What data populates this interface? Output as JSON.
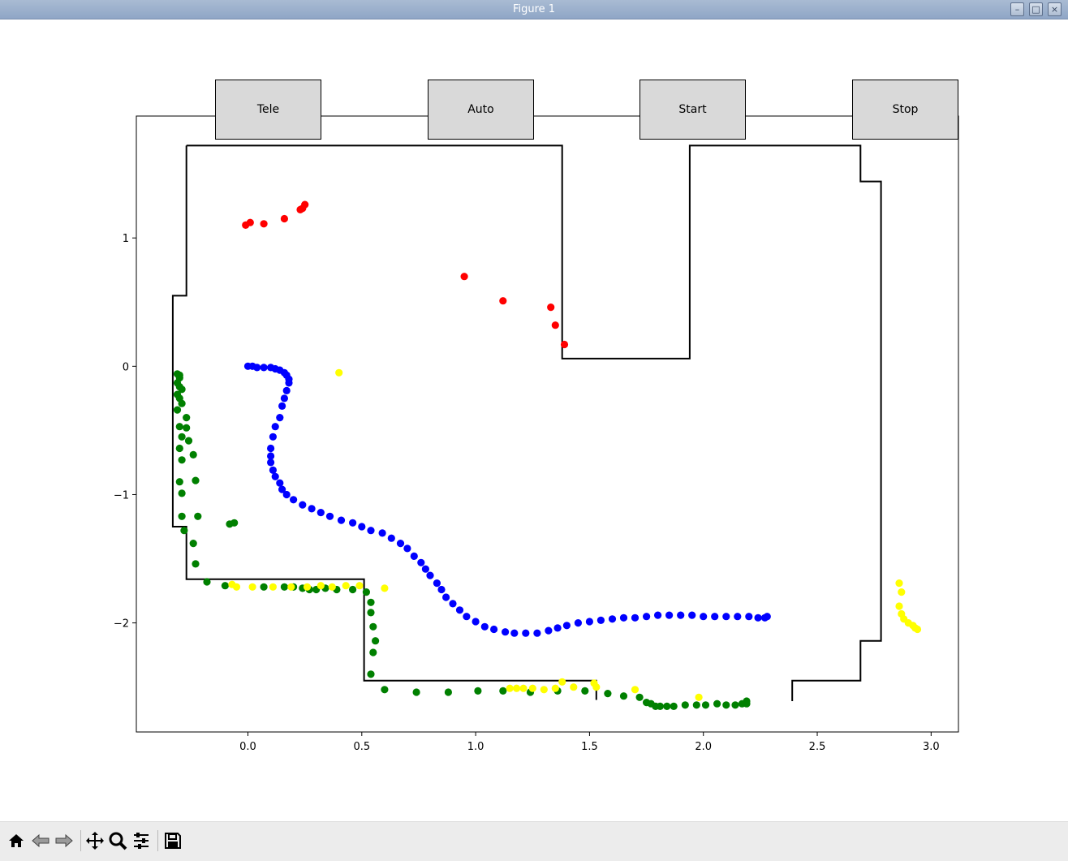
{
  "window": {
    "title": "Figure 1"
  },
  "buttons": [
    {
      "label": "Tele"
    },
    {
      "label": "Auto"
    },
    {
      "label": "Start"
    },
    {
      "label": "Stop"
    }
  ],
  "toolbar": {
    "tools": [
      {
        "icon": "home-icon"
      },
      {
        "icon": "back-arrow-icon"
      },
      {
        "icon": "forward-arrow-icon"
      },
      {
        "icon": "pan-icon"
      },
      {
        "icon": "zoom-icon"
      },
      {
        "icon": "configure-subplots-icon"
      },
      {
        "icon": "save-icon"
      }
    ]
  },
  "chart_data": {
    "type": "scatter",
    "title": "",
    "xlabel": "",
    "ylabel": "",
    "xlim": [
      -0.49,
      3.12
    ],
    "ylim": [
      -2.85,
      1.95
    ],
    "xticks": [
      0.0,
      0.5,
      1.0,
      1.5,
      2.0,
      2.5,
      3.0
    ],
    "xtick_labels": [
      "0.0",
      "0.5",
      "1.0",
      "1.5",
      "2.0",
      "2.5",
      "3.0"
    ],
    "yticks": [
      1,
      0,
      -1,
      -2
    ],
    "ytick_labels": [
      "1",
      "0",
      "−1",
      "−2"
    ],
    "grid": false,
    "map_outline": {
      "color": "#000000",
      "polylines": [
        [
          [
            -0.27,
            1.72
          ],
          [
            1.38,
            1.72
          ],
          [
            1.38,
            0.06
          ],
          [
            1.94,
            0.06
          ],
          [
            1.94,
            1.72
          ],
          [
            2.69,
            1.72
          ],
          [
            2.69,
            1.44
          ],
          [
            2.78,
            1.44
          ],
          [
            2.78,
            -2.14
          ],
          [
            2.69,
            -2.14
          ],
          [
            2.69,
            -2.45
          ],
          [
            2.39,
            -2.45
          ],
          [
            2.39,
            -2.61
          ]
        ],
        [
          [
            -0.27,
            1.72
          ],
          [
            -0.27,
            0.55
          ],
          [
            -0.33,
            0.55
          ],
          [
            -0.33,
            -1.25
          ],
          [
            -0.27,
            -1.25
          ],
          [
            -0.27,
            -1.66
          ],
          [
            0.51,
            -1.66
          ],
          [
            0.51,
            -2.45
          ],
          [
            1.53,
            -2.45
          ],
          [
            1.53,
            -2.6
          ]
        ]
      ]
    },
    "series": [
      {
        "color": "#0000ff",
        "x": [
          0.0,
          0.02,
          0.04,
          0.07,
          0.1,
          0.12,
          0.14,
          0.16,
          0.17,
          0.18,
          0.18,
          0.17,
          0.16,
          0.15,
          0.14,
          0.12,
          0.11,
          0.1,
          0.1,
          0.1,
          0.11,
          0.12,
          0.14,
          0.15,
          0.17,
          0.2,
          0.24,
          0.28,
          0.32,
          0.36,
          0.41,
          0.46,
          0.5,
          0.54,
          0.59,
          0.63,
          0.67,
          0.7,
          0.73,
          0.76,
          0.78,
          0.8,
          0.83,
          0.85,
          0.87,
          0.9,
          0.93,
          0.96,
          1.0,
          1.04,
          1.08,
          1.13,
          1.17,
          1.22,
          1.27,
          1.32,
          1.36,
          1.4,
          1.45,
          1.5,
          1.55,
          1.6,
          1.65,
          1.7,
          1.75,
          1.8,
          1.85,
          1.9,
          1.95,
          2.0,
          2.05,
          2.1,
          2.15,
          2.2,
          2.24,
          2.27,
          2.28
        ],
        "y": [
          0.0,
          0.0,
          -0.01,
          -0.01,
          -0.01,
          -0.02,
          -0.03,
          -0.05,
          -0.07,
          -0.1,
          -0.13,
          -0.19,
          -0.25,
          -0.31,
          -0.4,
          -0.47,
          -0.55,
          -0.64,
          -0.7,
          -0.75,
          -0.81,
          -0.86,
          -0.91,
          -0.96,
          -1.0,
          -1.04,
          -1.08,
          -1.11,
          -1.14,
          -1.17,
          -1.2,
          -1.22,
          -1.25,
          -1.28,
          -1.3,
          -1.34,
          -1.38,
          -1.42,
          -1.48,
          -1.53,
          -1.58,
          -1.63,
          -1.69,
          -1.74,
          -1.8,
          -1.85,
          -1.9,
          -1.95,
          -1.99,
          -2.03,
          -2.05,
          -2.07,
          -2.08,
          -2.08,
          -2.08,
          -2.06,
          -2.04,
          -2.02,
          -2.0,
          -1.99,
          -1.98,
          -1.97,
          -1.96,
          -1.96,
          -1.95,
          -1.94,
          -1.94,
          -1.94,
          -1.94,
          -1.95,
          -1.95,
          -1.95,
          -1.95,
          -1.95,
          -1.96,
          -1.96,
          -1.95
        ]
      },
      {
        "color": "#ff0000",
        "x": [
          -0.01,
          0.01,
          0.07,
          0.16,
          0.23,
          0.24,
          0.25,
          0.95,
          1.12,
          1.33,
          1.35,
          1.39
        ],
        "y": [
          1.1,
          1.12,
          1.11,
          1.15,
          1.22,
          1.23,
          1.26,
          0.7,
          0.51,
          0.46,
          0.32,
          0.17
        ]
      },
      {
        "color": "#008000",
        "x": [
          -0.31,
          -0.3,
          -0.3,
          -0.31,
          -0.3,
          -0.29,
          -0.31,
          -0.3,
          -0.29,
          -0.31,
          -0.27,
          -0.3,
          -0.27,
          -0.29,
          -0.26,
          -0.3,
          -0.24,
          -0.29,
          -0.23,
          -0.3,
          -0.29,
          -0.22,
          -0.29,
          -0.28,
          -0.24,
          -0.23,
          -0.18,
          -0.1,
          -0.08,
          -0.06,
          0.07,
          0.16,
          0.2,
          0.24,
          0.27,
          0.3,
          0.34,
          0.39,
          0.46,
          0.52,
          0.54,
          0.54,
          0.55,
          0.56,
          0.55,
          0.54,
          0.6,
          0.74,
          0.88,
          1.01,
          1.12,
          1.24,
          1.36,
          1.48,
          1.58,
          1.65,
          1.72,
          1.75,
          1.77,
          1.79,
          1.81,
          1.84,
          1.87,
          1.92,
          1.97,
          2.01,
          2.06,
          2.1,
          2.14,
          2.17,
          2.19,
          2.19
        ],
        "y": [
          -0.06,
          -0.07,
          -0.09,
          -0.13,
          -0.16,
          -0.18,
          -0.22,
          -0.25,
          -0.29,
          -0.34,
          -0.4,
          -0.47,
          -0.48,
          -0.55,
          -0.58,
          -0.64,
          -0.69,
          -0.73,
          -0.89,
          -0.9,
          -0.99,
          -1.17,
          -1.17,
          -1.28,
          -1.38,
          -1.54,
          -1.68,
          -1.71,
          -1.23,
          -1.22,
          -1.72,
          -1.72,
          -1.72,
          -1.73,
          -1.74,
          -1.74,
          -1.73,
          -1.74,
          -1.74,
          -1.76,
          -1.84,
          -1.92,
          -2.03,
          -2.14,
          -2.23,
          -2.4,
          -2.52,
          -2.54,
          -2.54,
          -2.53,
          -2.53,
          -2.54,
          -2.53,
          -2.53,
          -2.55,
          -2.57,
          -2.58,
          -2.62,
          -2.63,
          -2.65,
          -2.65,
          -2.65,
          -2.65,
          -2.64,
          -2.64,
          -2.64,
          -2.63,
          -2.64,
          -2.64,
          -2.63,
          -2.63,
          -2.61
        ],
        "y_fix": []
      },
      {
        "color": "#ffff00",
        "x": [
          0.4,
          -0.07,
          -0.05,
          0.02,
          0.11,
          0.19,
          0.26,
          0.32,
          0.37,
          0.43,
          0.49,
          0.6,
          1.15,
          1.18,
          1.21,
          1.25,
          1.3,
          1.35,
          1.38,
          1.43,
          1.52,
          1.53,
          1.7,
          1.98,
          2.86,
          2.87,
          2.86,
          2.87,
          2.88,
          2.9,
          2.92,
          2.93,
          2.94
        ],
        "y": [
          -0.05,
          -1.7,
          -1.72,
          -1.72,
          -1.72,
          -1.72,
          -1.72,
          -1.71,
          -1.72,
          -1.71,
          -1.71,
          -1.73,
          -2.51,
          -2.51,
          -2.51,
          -2.51,
          -2.52,
          -2.51,
          -2.46,
          -2.5,
          -2.47,
          -2.5,
          -2.52,
          -2.58,
          -1.69,
          -1.76,
          -1.87,
          -1.93,
          -1.97,
          -2.0,
          -2.02,
          -2.04,
          -2.05
        ]
      }
    ]
  }
}
